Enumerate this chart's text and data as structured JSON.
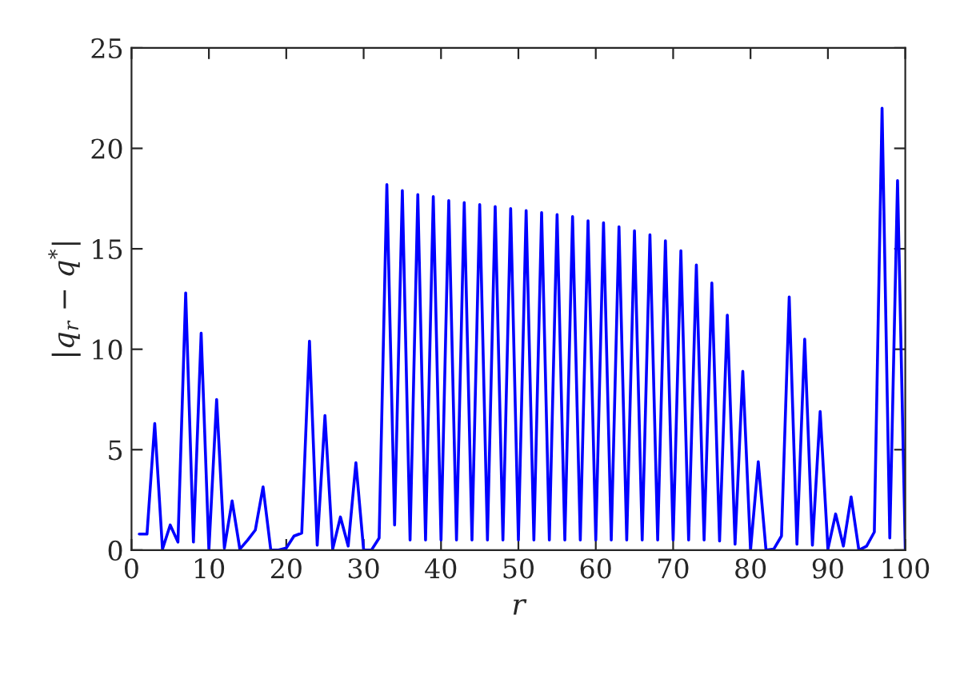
{
  "chart_data": {
    "type": "line",
    "xlabel": "r",
    "ylabel": "|q$_{r}$ − q$^{*}$|",
    "x": [
      1,
      2,
      3,
      4,
      5,
      6,
      7,
      8,
      9,
      10,
      11,
      12,
      13,
      14,
      15,
      16,
      17,
      18,
      19,
      20,
      21,
      22,
      23,
      24,
      25,
      26,
      27,
      28,
      29,
      30,
      31,
      32,
      33,
      34,
      35,
      36,
      37,
      38,
      39,
      40,
      41,
      42,
      43,
      44,
      45,
      46,
      47,
      48,
      49,
      50,
      51,
      52,
      53,
      54,
      55,
      56,
      57,
      58,
      59,
      60,
      61,
      62,
      63,
      64,
      65,
      66,
      67,
      68,
      69,
      70,
      71,
      72,
      73,
      74,
      75,
      76,
      77,
      78,
      79,
      80,
      81,
      82,
      83,
      84,
      85,
      86,
      87,
      88,
      89,
      90,
      91,
      92,
      93,
      94,
      95,
      96,
      97,
      98,
      99,
      100
    ],
    "series": [
      {
        "color": "#0000ff",
        "values": [
          0.8,
          0.8,
          6.3,
          0.05,
          1.25,
          0.4,
          12.8,
          0.4,
          10.8,
          0,
          7.5,
          0.1,
          2.45,
          0.05,
          0.5,
          1.0,
          3.15,
          0,
          0,
          0.1,
          0.7,
          0.85,
          10.4,
          0.25,
          6.7,
          0.05,
          1.65,
          0.2,
          4.35,
          0,
          0,
          0.6,
          18.2,
          1.25,
          17.9,
          0.5,
          17.7,
          0.5,
          17.6,
          0.5,
          17.4,
          0.5,
          17.3,
          0.5,
          17.2,
          0.5,
          17.1,
          0.5,
          17.0,
          0.5,
          16.9,
          0.5,
          16.8,
          0.5,
          16.7,
          0.5,
          16.6,
          0.5,
          16.4,
          0.5,
          16.3,
          0.5,
          16.1,
          0.5,
          15.9,
          0.5,
          15.7,
          0.5,
          15.4,
          0.5,
          14.9,
          0.5,
          14.2,
          0.5,
          13.3,
          0.45,
          11.7,
          0.3,
          8.9,
          0,
          4.4,
          0,
          0.05,
          0.7,
          12.6,
          0.3,
          10.5,
          0.25,
          6.9,
          0.05,
          1.8,
          0.2,
          2.65,
          0,
          0.2,
          0.9,
          22.0,
          0.6,
          18.4,
          0.05
        ]
      }
    ],
    "xlim": [
      0,
      100
    ],
    "xticks": [
      0,
      10,
      20,
      30,
      40,
      50,
      60,
      70,
      80,
      90,
      100
    ],
    "ylim": [
      0,
      25
    ],
    "yticks": [
      0,
      5,
      10,
      15,
      20,
      25
    ],
    "grid": false,
    "marker": "none",
    "line_style": "solid"
  }
}
